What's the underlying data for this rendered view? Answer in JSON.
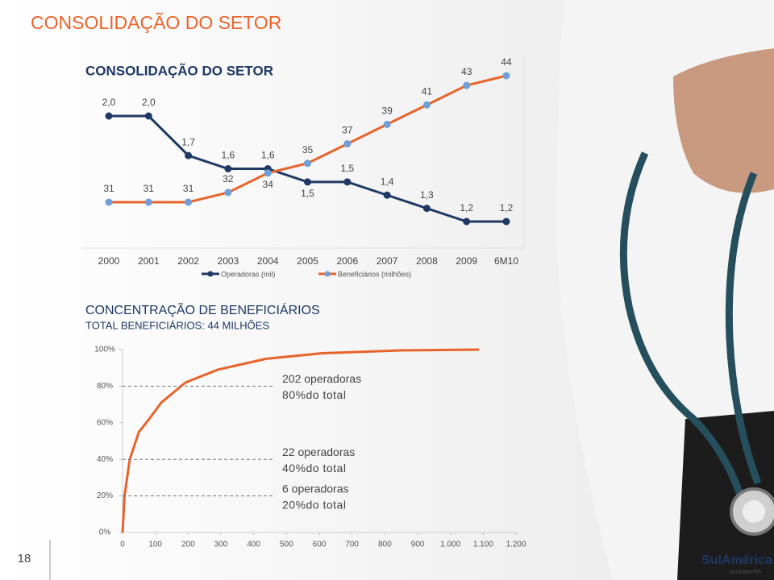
{
  "header": {
    "title": "CONSOLIDAÇÃO DO SETOR"
  },
  "page_number": "18",
  "logo": {
    "name": "SulAmérica",
    "tagline": "associada ING"
  },
  "chart_data": [
    {
      "type": "line",
      "title": "CONSOLIDAÇÃO DO SETOR",
      "categories": [
        "2000",
        "2001",
        "2002",
        "2003",
        "2004",
        "2005",
        "2006",
        "2007",
        "2008",
        "2009",
        "6M10"
      ],
      "series": [
        {
          "name": "Operadoras (mil)",
          "color": "#1f3864",
          "values": [
            2.0,
            2.0,
            1.7,
            1.6,
            1.6,
            1.5,
            1.5,
            1.4,
            1.3,
            1.2,
            1.2
          ],
          "value_labels": [
            "2,0",
            "2,0",
            "1,7",
            "1,6",
            "1,6",
            "1,5",
            "1,5",
            "1,4",
            "1,3",
            "1,2",
            "1,2"
          ]
        },
        {
          "name": "Beneficiários (milhões)",
          "color": "#e8632b",
          "marker_color": "#6f9fd8",
          "axis": "y2",
          "values": [
            31,
            31,
            31,
            32,
            34,
            35,
            37,
            39,
            41,
            43,
            44
          ]
        }
      ]
    },
    {
      "type": "area-curve",
      "title": "CONCENTRAÇÃO DE BENEFICIÁRIOS",
      "subtitle": "TOTAL BENEFICIÁRIOS: 44 MILHÕES",
      "color": "#e8632b",
      "x": [
        0,
        6,
        22,
        50,
        81,
        118,
        192,
        290,
        438,
        610,
        856,
        1087
      ],
      "values": [
        0,
        20,
        40,
        55,
        62,
        71,
        82,
        89,
        95,
        98,
        99.6,
        100
      ],
      "xlim": [
        0,
        1200
      ],
      "xticks": [
        0,
        100,
        200,
        300,
        400,
        500,
        600,
        700,
        800,
        900,
        {
          "value": 1000,
          "label": "1.000"
        },
        {
          "value": 1100,
          "label": "1.100"
        },
        {
          "value": 1200,
          "label": "1.200"
        }
      ],
      "ylim": [
        0,
        100
      ],
      "yticks": [
        {
          "value": 0,
          "label": "0%"
        },
        {
          "value": 20,
          "label": "20%"
        },
        {
          "value": 40,
          "label": "40%"
        },
        {
          "value": 60,
          "label": "60%"
        },
        {
          "value": 80,
          "label": "80%"
        },
        {
          "value": 100,
          "label": "100%"
        }
      ],
      "annotations": [
        {
          "label": "202 operadoras",
          "sublabel": "80%do total",
          "y": 80
        },
        {
          "label": "22 operadoras",
          "sublabel": "40%do total",
          "y": 40
        },
        {
          "label": "6 operadoras",
          "sublabel": "20%do total",
          "y": 20
        }
      ]
    }
  ]
}
